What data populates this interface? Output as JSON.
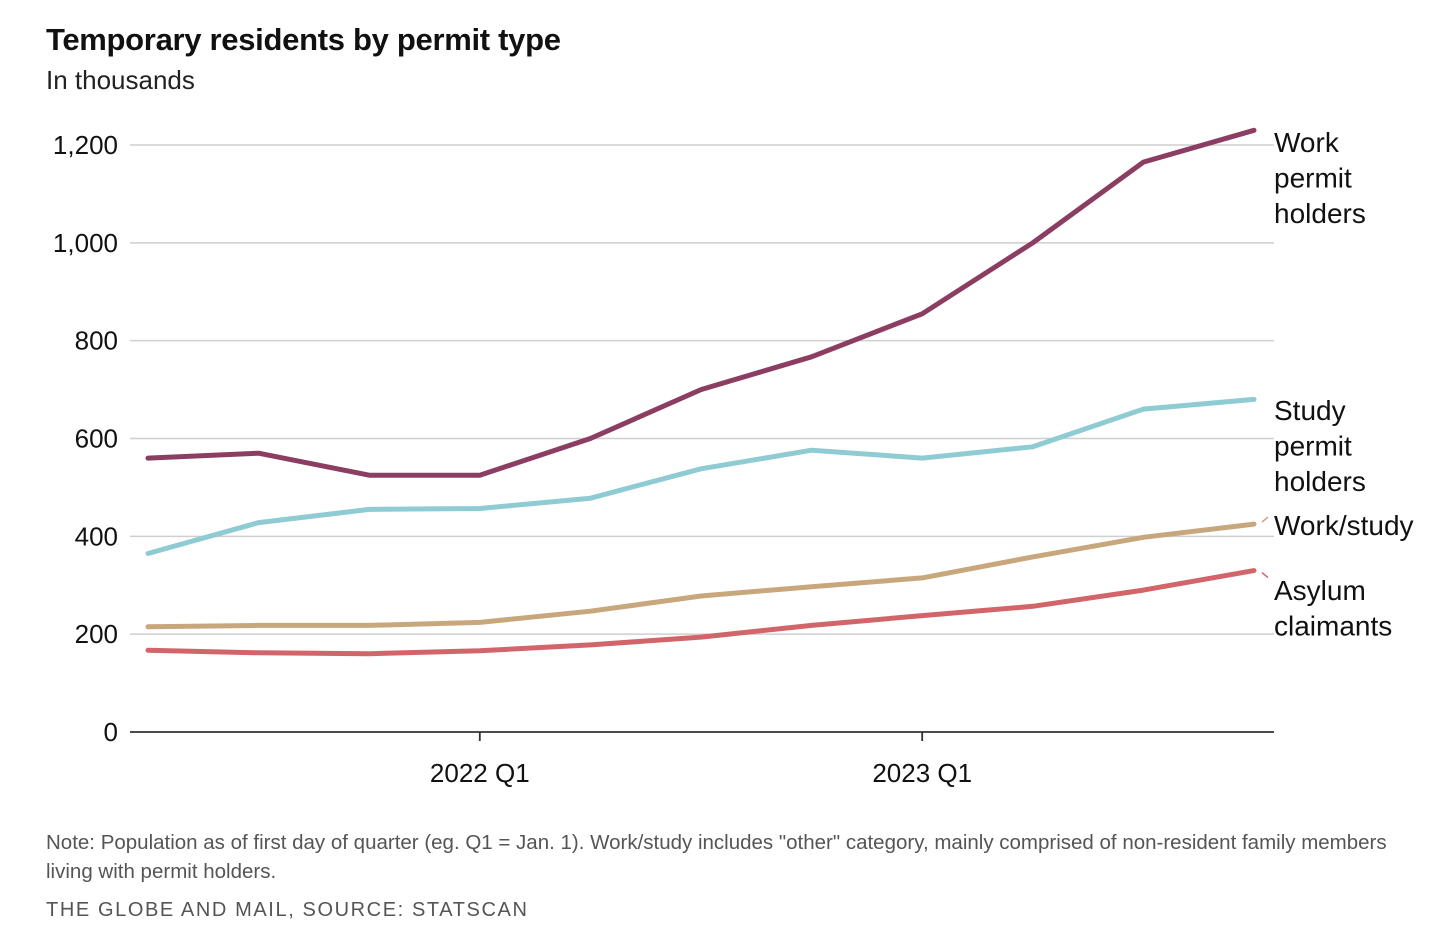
{
  "chart_data": {
    "type": "line",
    "title": "Temporary residents by permit type",
    "subtitle": "In thousands",
    "x": [
      "2021 Q2",
      "2021 Q3",
      "2021 Q4",
      "2022 Q1",
      "2022 Q2",
      "2022 Q3",
      "2022 Q4",
      "2023 Q1",
      "2023 Q2",
      "2023 Q3",
      "2023 Q4"
    ],
    "x_tick_labels": [
      {
        "label": "2022 Q1",
        "at": "2022 Q1"
      },
      {
        "label": "2023 Q1",
        "at": "2023 Q1"
      }
    ],
    "y_ticks": [
      0,
      200,
      400,
      600,
      800,
      1000,
      1200
    ],
    "y_tick_labels": [
      "0",
      "200",
      "400",
      "600",
      "800",
      "1,000",
      "1,200"
    ],
    "ylim": [
      0,
      1200
    ],
    "grid": "horizontal",
    "legend": "direct labels at right end of lines",
    "series": [
      {
        "name": "Work permit holders",
        "label_lines": [
          "Work",
          "permit",
          "holders"
        ],
        "color": "#8b3e61",
        "values": [
          560,
          570,
          525,
          525,
          600,
          700,
          767,
          855,
          1000,
          1165,
          1230
        ]
      },
      {
        "name": "Study permit holders",
        "label_lines": [
          "Study",
          "permit",
          "holders"
        ],
        "color": "#8ecbd2",
        "values": [
          365,
          428,
          455,
          457,
          478,
          538,
          576,
          560,
          583,
          660,
          680
        ]
      },
      {
        "name": "Work/study",
        "label_lines": [
          "Work/study"
        ],
        "color": "#c9a77c",
        "values": [
          215,
          218,
          218,
          224,
          247,
          278,
          297,
          315,
          358,
          398,
          425
        ]
      },
      {
        "name": "Asylum claimants",
        "label_lines": [
          "Asylum",
          "claimants"
        ],
        "color": "#d2656a",
        "values": [
          167,
          162,
          160,
          166,
          178,
          194,
          218,
          238,
          257,
          290,
          330
        ]
      }
    ]
  },
  "note": "Note: Population as of first day of quarter (eg. Q1 = Jan. 1). Work/study includes \"other\" category, mainly comprised of non-resident family members living with permit holders.",
  "credit": "THE GLOBE AND MAIL, SOURCE: STATSCAN"
}
